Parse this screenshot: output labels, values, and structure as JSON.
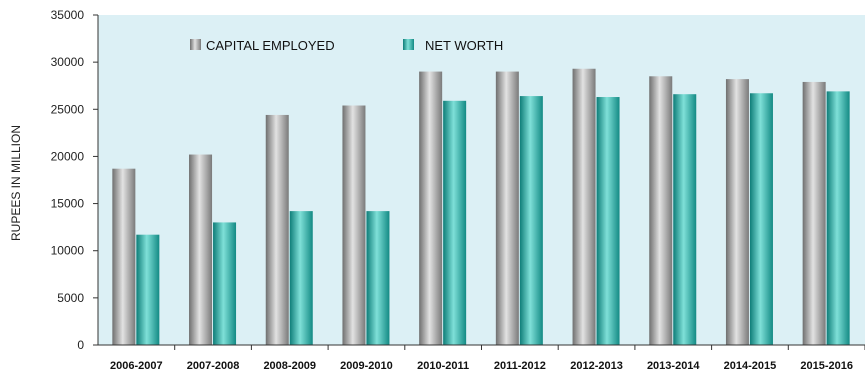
{
  "chart_data": {
    "type": "bar",
    "title": "",
    "xlabel": "",
    "ylabel": "RUPEES IN MILLION",
    "ylim": [
      0,
      35000
    ],
    "yticks": [
      0,
      5000,
      10000,
      15000,
      20000,
      25000,
      30000,
      35000
    ],
    "categories": [
      "2006-2007",
      "2007-2008",
      "2008-2009",
      "2009-2010",
      "2010-2011",
      "2011-2012",
      "2012-2013",
      "2013-2014",
      "2014-2015",
      "2015-2016"
    ],
    "series": [
      {
        "name": "CAPITAL EMPLOYED",
        "color": "#8a8a8a",
        "values": [
          18700,
          20200,
          24400,
          25400,
          29000,
          29000,
          29300,
          28500,
          28200,
          27900
        ]
      },
      {
        "name": "NET WORTH",
        "color": "#1aa39c",
        "values": [
          11700,
          13000,
          14200,
          14200,
          25900,
          26400,
          26300,
          26600,
          26700,
          26900
        ]
      }
    ],
    "legend_position": "top-left",
    "grid": false,
    "background": "#dcf0f5"
  }
}
